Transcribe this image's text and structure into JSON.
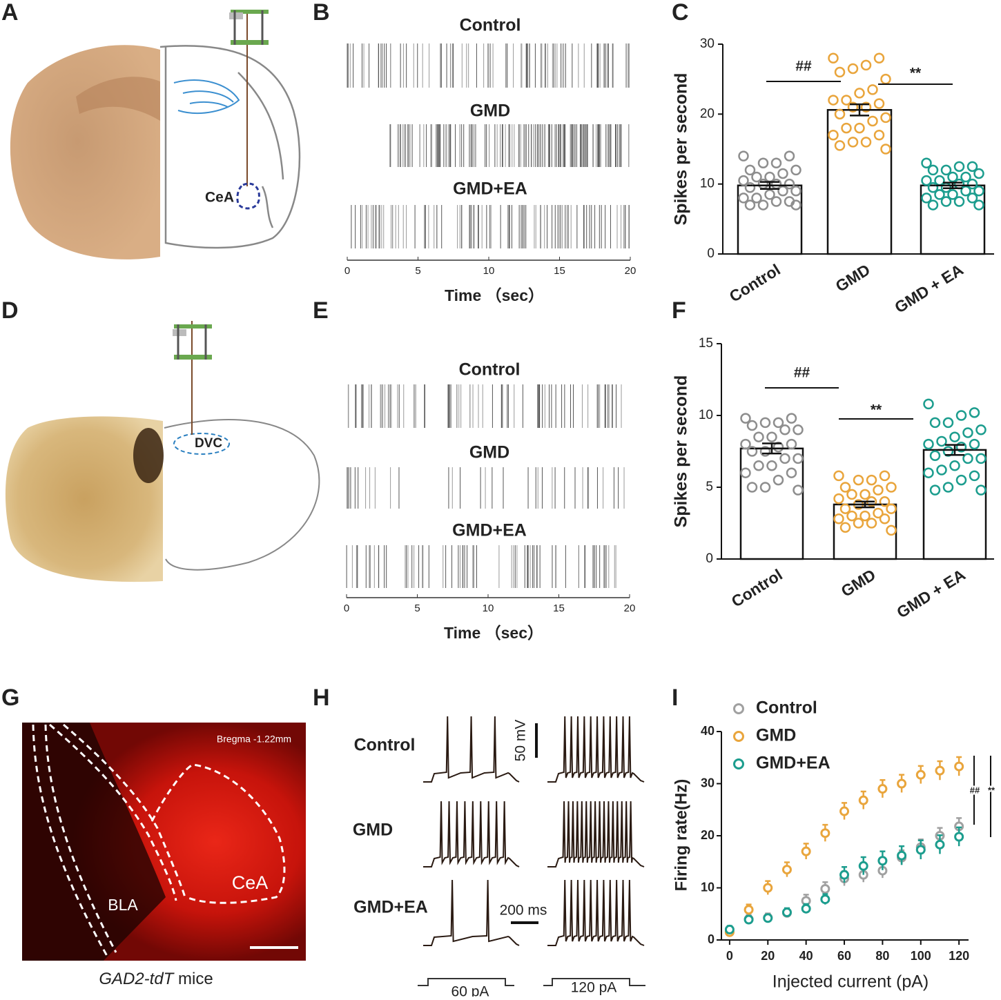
{
  "panel_letters": [
    "A",
    "B",
    "C",
    "D",
    "E",
    "F",
    "G",
    "H",
    "I"
  ],
  "panel_a": {
    "region": "CeA"
  },
  "panel_d": {
    "region": "DVC"
  },
  "panel_g": {
    "bregma": "Bregma  -1.22mm",
    "regions": [
      "BLA",
      "CeA"
    ],
    "caption_italic": "GAD2-tdT",
    "caption": " mice"
  },
  "panel_h": {
    "groups": [
      "Control",
      "GMD",
      "GMD+EA"
    ],
    "voltage_scale": "50 mV",
    "time_scale": "200 ms",
    "currents": [
      "60 pA",
      "120 pA"
    ]
  },
  "chart_data": [
    {
      "type": "raster",
      "categories": [
        "Control",
        "GMD",
        "GMD+EA"
      ],
      "xlim": [
        0,
        20
      ],
      "xticks": [
        0,
        5,
        10,
        15,
        20
      ],
      "xlabel": "Time （sec）"
    },
    {
      "type": "bar",
      "ylabel": "Spikes per second",
      "categories": [
        "Control",
        "GMD",
        "GMD + EA"
      ],
      "values": [
        9.8,
        20.6,
        9.8
      ],
      "errors": [
        0.5,
        0.8,
        0.4
      ],
      "points": [
        [
          14,
          14,
          13,
          13,
          12,
          12,
          11.5,
          11,
          11,
          10.5,
          10,
          10,
          10,
          9.5,
          9,
          9,
          8.5,
          8,
          8,
          7.5,
          7.5,
          7,
          7,
          7
        ],
        [
          28,
          28,
          27,
          26.5,
          26,
          25,
          23.5,
          23,
          22,
          22,
          21.5,
          21,
          21,
          20,
          19.5,
          19,
          18,
          18,
          17,
          17,
          16,
          16,
          15.5,
          15
        ],
        [
          13,
          12.5,
          12.5,
          12,
          12,
          11.5,
          11,
          11,
          10.5,
          10.5,
          10,
          10,
          9.5,
          9.5,
          9,
          9,
          8.5,
          8.5,
          8,
          8,
          7.5,
          7.5,
          7,
          7
        ]
      ],
      "point_colors": [
        "#8e8e8e",
        "#e9a53c",
        "#1c9d8e"
      ],
      "ylim": [
        0,
        30
      ],
      "yticks": [
        0,
        10,
        20,
        30
      ],
      "annotations": [
        "##",
        "**"
      ]
    },
    {
      "type": "raster",
      "categories": [
        "Control",
        "GMD",
        "GMD+EA"
      ],
      "xlim": [
        0,
        20
      ],
      "xticks": [
        0,
        5,
        10,
        15,
        20
      ],
      "xlabel": "Time （sec）"
    },
    {
      "type": "bar",
      "ylabel": "Spikes per second",
      "categories": [
        "Control",
        "GMD",
        "GMD + EA"
      ],
      "values": [
        7.7,
        3.8,
        7.6
      ],
      "errors": [
        0.35,
        0.2,
        0.35
      ],
      "points": [
        [
          9.8,
          9.8,
          9.5,
          9.5,
          9.3,
          9,
          9,
          8.5,
          8.5,
          8,
          8,
          7.8,
          7.5,
          7.5,
          7,
          7,
          6.5,
          6.5,
          6,
          6,
          5.5,
          5,
          5,
          4.8
        ],
        [
          5.8,
          5.8,
          5.5,
          5.5,
          5,
          5,
          4.8,
          4.5,
          4.5,
          4.2,
          4,
          4,
          3.8,
          3.5,
          3.5,
          3.2,
          3,
          3,
          2.8,
          2.8,
          2.5,
          2.5,
          2.2,
          2
        ],
        [
          10.8,
          10.2,
          10,
          9.5,
          9.5,
          9,
          8.8,
          8.5,
          8.2,
          8,
          8,
          7.8,
          7.5,
          7.2,
          7,
          7,
          6.5,
          6.2,
          6,
          5.8,
          5.5,
          5,
          4.8,
          4.8
        ]
      ],
      "point_colors": [
        "#8e8e8e",
        "#e9a53c",
        "#1c9d8e"
      ],
      "ylim": [
        0,
        15
      ],
      "yticks": [
        0,
        5,
        10,
        15
      ],
      "annotations": [
        "##",
        "**"
      ]
    },
    {
      "type": "line",
      "xlabel": "Injected current (pA)",
      "ylabel": "Firing rate(Hz)",
      "x": [
        0,
        10,
        20,
        30,
        40,
        50,
        60,
        70,
        80,
        90,
        100,
        110,
        120
      ],
      "series": [
        {
          "name": "Control",
          "color": "#a0a0a0",
          "values": [
            1.5,
            4,
            4.3,
            5.2,
            7.5,
            9.8,
            11.8,
            12.5,
            13.3,
            15.8,
            17.8,
            20,
            21.8
          ],
          "errors": [
            0.8,
            0.8,
            0.8,
            0.9,
            1.2,
            1.3,
            1.4,
            1.4,
            1.4,
            1.4,
            1.5,
            1.5,
            1.6
          ]
        },
        {
          "name": "GMD",
          "color": "#e9a53c",
          "values": [
            1.5,
            5.8,
            10,
            13.5,
            17,
            20.5,
            24.7,
            26.8,
            29,
            30,
            31.7,
            32.5,
            33.3
          ],
          "errors": [
            0.8,
            1,
            1.3,
            1.4,
            1.5,
            1.6,
            1.6,
            1.7,
            1.7,
            1.7,
            1.7,
            1.8,
            1.8
          ]
        },
        {
          "name": "GMD+EA",
          "color": "#1c9d8e",
          "values": [
            2,
            3.9,
            4.2,
            5.3,
            6,
            7.8,
            12.5,
            14.2,
            15.2,
            16.2,
            17.3,
            18.3,
            19.8
          ],
          "errors": [
            0.7,
            0.7,
            0.7,
            0.8,
            0.9,
            1,
            1.5,
            1.7,
            1.8,
            1.8,
            1.8,
            1.8,
            1.8
          ]
        }
      ],
      "xlim": [
        -4.3,
        125
      ],
      "ylim": [
        0,
        40
      ],
      "xticks": [
        0,
        20,
        40,
        60,
        80,
        100,
        120
      ],
      "yticks": [
        0,
        10,
        20,
        30,
        40
      ],
      "legend": "top-left",
      "annotations": [
        "##",
        "**"
      ]
    }
  ]
}
